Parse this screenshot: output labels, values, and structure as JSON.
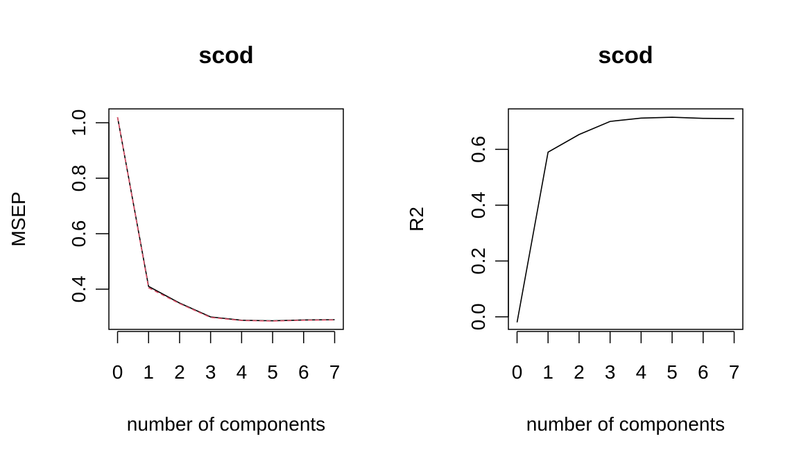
{
  "chart_data": [
    {
      "type": "line",
      "title": "scod",
      "xlabel": "number of components",
      "ylabel": "MSEP",
      "x": [
        0,
        1,
        2,
        3,
        4,
        5,
        6,
        7
      ],
      "xticks": [
        "0",
        "1",
        "2",
        "3",
        "4",
        "5",
        "6",
        "7"
      ],
      "yticks": [
        "0.4",
        "0.6",
        "0.8",
        "1.0"
      ],
      "ylim": [
        0.255,
        1.05
      ],
      "series": [
        {
          "values": [
            1.02,
            0.41,
            0.35,
            0.3,
            0.288,
            0.286,
            0.289,
            0.29
          ],
          "color": "#000000",
          "dash": "solid"
        },
        {
          "values": [
            1.02,
            0.405,
            0.348,
            0.298,
            0.287,
            0.285,
            0.288,
            0.289
          ],
          "color": "#DF536B",
          "dash": "dashed"
        }
      ]
    },
    {
      "type": "line",
      "title": "scod",
      "xlabel": "number of components",
      "ylabel": "R2",
      "x": [
        0,
        1,
        2,
        3,
        4,
        5,
        6,
        7
      ],
      "xticks": [
        "0",
        "1",
        "2",
        "3",
        "4",
        "5",
        "6",
        "7"
      ],
      "yticks": [
        "0.0",
        "0.2",
        "0.4",
        "0.6"
      ],
      "ylim": [
        -0.045,
        0.745
      ],
      "series": [
        {
          "values": [
            -0.02,
            0.59,
            0.653,
            0.7,
            0.712,
            0.715,
            0.711,
            0.71
          ],
          "color": "#000000",
          "dash": "solid"
        }
      ]
    }
  ]
}
